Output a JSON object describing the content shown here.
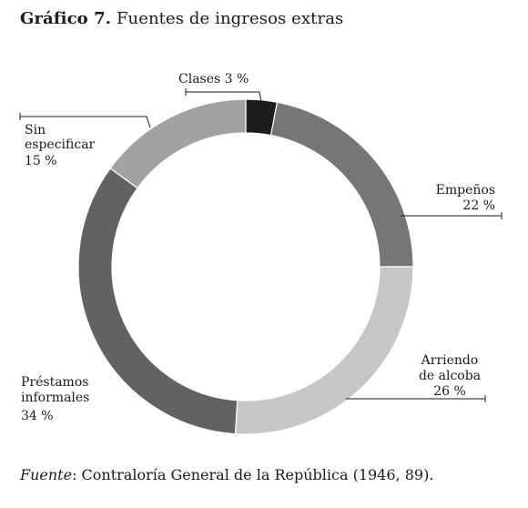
{
  "figure": {
    "title_prefix": "Gráfico 7.",
    "title_text": "Fuentes de ingresos extras",
    "source_label": "Fuente",
    "source_text": ": Contraloría General de la República (1946, 89)."
  },
  "chart_data": {
    "type": "pie",
    "title": "Fuentes de ingresos extras",
    "donut": true,
    "unit": "%",
    "slices": [
      {
        "label": "Clases",
        "value": 3,
        "value_label": "3 %",
        "color": "#1e1c1d"
      },
      {
        "label": "Empeños",
        "value": 22,
        "value_label": "22 %",
        "color": "#767676"
      },
      {
        "label": "Arriendo de alcoba",
        "value": 26,
        "value_label": "26 %",
        "color": "#c6c6c6"
      },
      {
        "label": "Préstamos informales",
        "value": 34,
        "value_label": "34 %",
        "color": "#626262"
      },
      {
        "label": "Sin especificar",
        "value": 15,
        "value_label": "15 %",
        "color": "#a2a2a2"
      }
    ]
  }
}
